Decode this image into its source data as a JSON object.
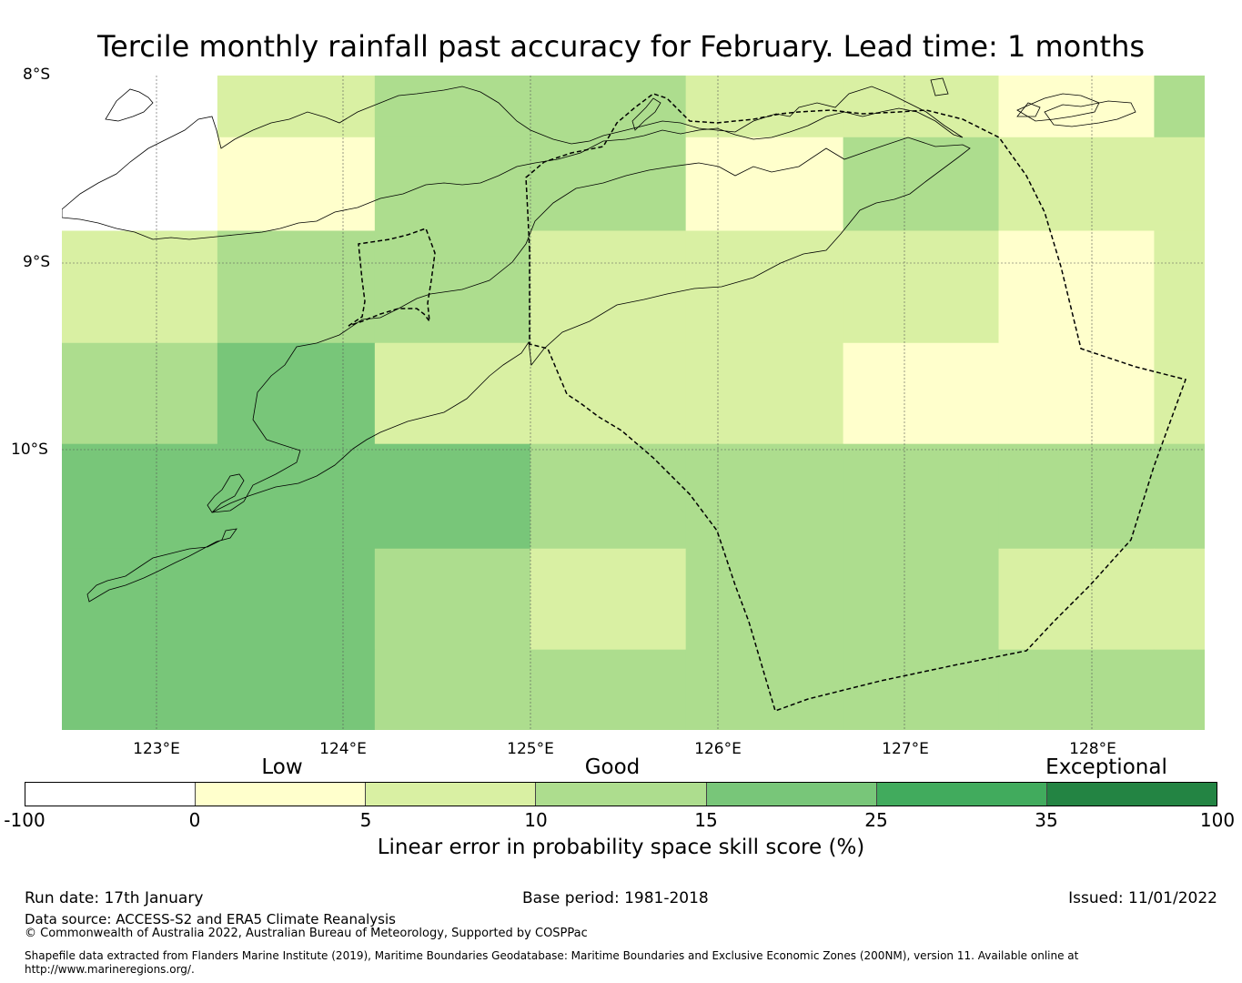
{
  "title": "Tercile monthly rainfall past accuracy for February. Lead time: 1 months",
  "map": {
    "lat_labels": [
      "8°S",
      "9°S",
      "10°S"
    ],
    "lon_labels": [
      "123°E",
      "124°E",
      "125°E",
      "126°E",
      "127°E",
      "128°E"
    ],
    "grid_lon": [
      122.5,
      123.33,
      124.17,
      125.0,
      125.83,
      126.67,
      127.5,
      128.33,
      128.6
    ],
    "grid_lat": [
      -8.0,
      -8.33,
      -8.83,
      -9.43,
      -9.97,
      -10.53,
      -11.07,
      -11.6
    ],
    "cells": [
      [
        "ns",
        1,
        2,
        2,
        1,
        1,
        0,
        2,
        2
      ],
      [
        -1,
        0,
        2,
        2,
        0,
        2,
        1,
        1,
        2
      ],
      [
        1,
        2,
        2,
        1,
        1,
        1,
        0,
        1,
        1
      ],
      [
        2,
        3,
        1,
        1,
        1,
        0,
        0,
        1,
        2
      ],
      [
        3,
        3,
        3,
        2,
        2,
        2,
        2,
        2,
        2
      ],
      [
        3,
        3,
        2,
        1,
        2,
        2,
        1,
        1,
        2
      ],
      [
        3,
        3,
        2,
        2,
        2,
        2,
        2,
        2,
        2
      ]
    ]
  },
  "colorbar": {
    "colors": [
      "#ffffff",
      "#ffffcc",
      "#d9f0a3",
      "#addd8e",
      "#78c679",
      "#41ab5d",
      "#238443"
    ],
    "ticks": [
      "-100",
      "0",
      "5",
      "10",
      "15",
      "25",
      "35",
      "100"
    ],
    "categories": [
      "Low",
      "Good",
      "Exceptional"
    ],
    "title": "Linear error in probability space skill score (%)"
  },
  "footer": {
    "run_date": "Run date: 17th January",
    "base_period": "Base period: 1981-2018",
    "issued": "Issued: 11/01/2022",
    "data_source": "Data source: ACCESS-S2 and ERA5 Climate Reanalysis",
    "copyright": "© Commonwealth of Australia 2022, Australian Bureau of Meteorology, Supported by COSPPac",
    "shapefile_line1": "Shapefile data extracted from Flanders Marine Institute (2019), Maritime Boundaries Geodatabase: Maritime Boundaries and Exclusive Economic Zones (200NM), version 11. Available online at",
    "shapefile_line2": "http://www.marineregions.org/."
  }
}
